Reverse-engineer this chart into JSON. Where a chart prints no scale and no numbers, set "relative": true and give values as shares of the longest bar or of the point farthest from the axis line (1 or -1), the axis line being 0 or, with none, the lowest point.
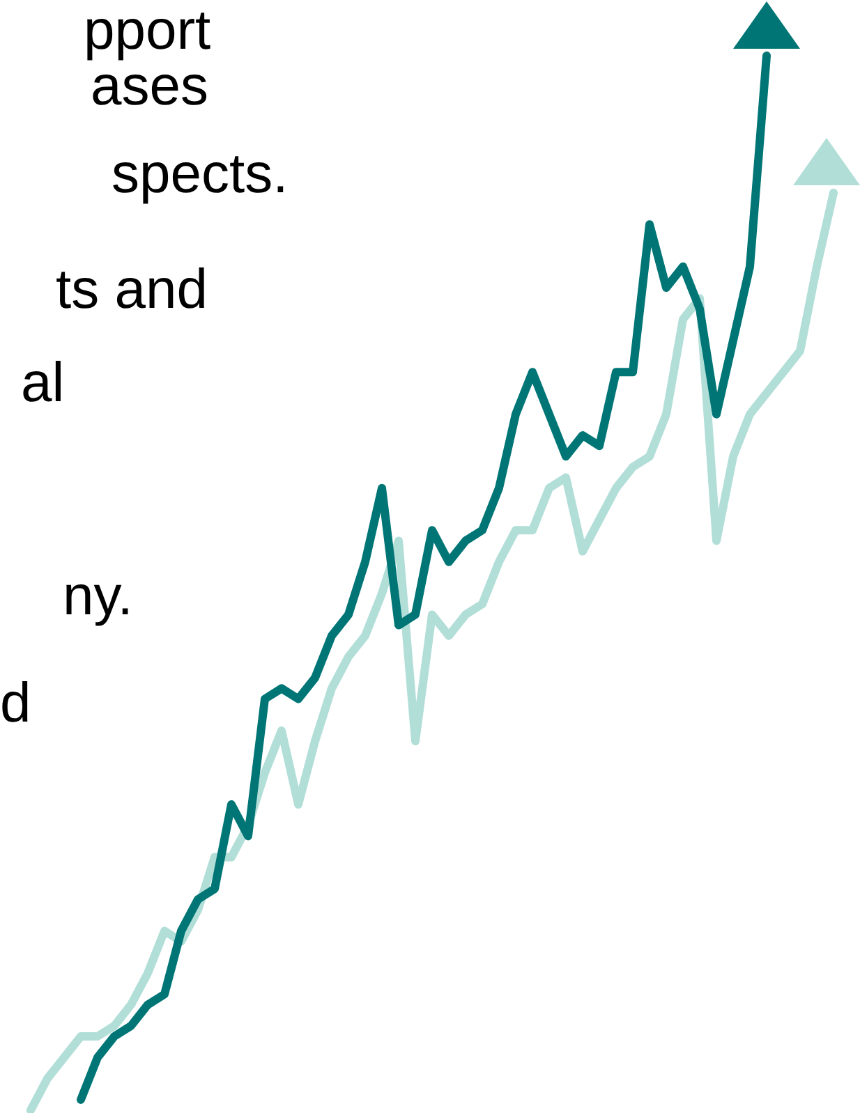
{
  "chart_data": {
    "type": "line",
    "relative": true,
    "annotations": [
      "pport",
      "ases",
      "spects.",
      "ts and",
      "al",
      "ny.",
      "d"
    ],
    "categories": [
      null,
      null,
      null,
      null,
      null,
      null,
      null,
      null,
      null,
      null,
      null,
      null,
      null,
      null,
      null,
      null,
      null,
      null,
      null,
      null,
      null,
      null,
      null,
      null,
      null,
      null,
      null,
      null,
      null,
      null,
      null,
      null,
      null,
      null,
      null,
      null,
      null,
      null,
      null,
      null,
      null,
      null,
      null,
      null,
      null,
      null,
      null,
      null,
      null
    ],
    "series": [
      {
        "color": "#b2ded8",
        "values": [
          0,
          0.03,
          0.05,
          0.07,
          0.07,
          0.08,
          0.1,
          0.13,
          0.17,
          0.16,
          0.19,
          0.24,
          0.24,
          0.27,
          0.32,
          0.36,
          0.29,
          0.35,
          0.4,
          0.43,
          0.45,
          0.49,
          0.54,
          0.35,
          0.47,
          0.45,
          0.47,
          0.48,
          0.52,
          0.55,
          0.55,
          0.59,
          0.6,
          0.53,
          0.56,
          0.59,
          0.61,
          0.62,
          0.66,
          0.75,
          0.77,
          0.54,
          0.62,
          0.66,
          0.68,
          0.7,
          0.72,
          0.8,
          0.87
        ]
      },
      {
        "color": "#007575",
        "values": [
          null,
          null,
          null,
          0.01,
          0.05,
          0.07,
          0.08,
          0.1,
          0.11,
          0.17,
          0.2,
          0.21,
          0.29,
          0.26,
          0.39,
          0.4,
          0.39,
          0.41,
          0.45,
          0.47,
          0.52,
          0.59,
          0.46,
          0.47,
          0.55,
          0.52,
          0.54,
          0.55,
          0.59,
          0.66,
          0.7,
          0.66,
          0.62,
          0.64,
          0.63,
          0.7,
          0.7,
          0.84,
          0.78,
          0.8,
          0.76,
          0.66,
          0.73,
          0.8,
          1,
          null,
          null,
          null,
          null
        ]
      }
    ]
  }
}
